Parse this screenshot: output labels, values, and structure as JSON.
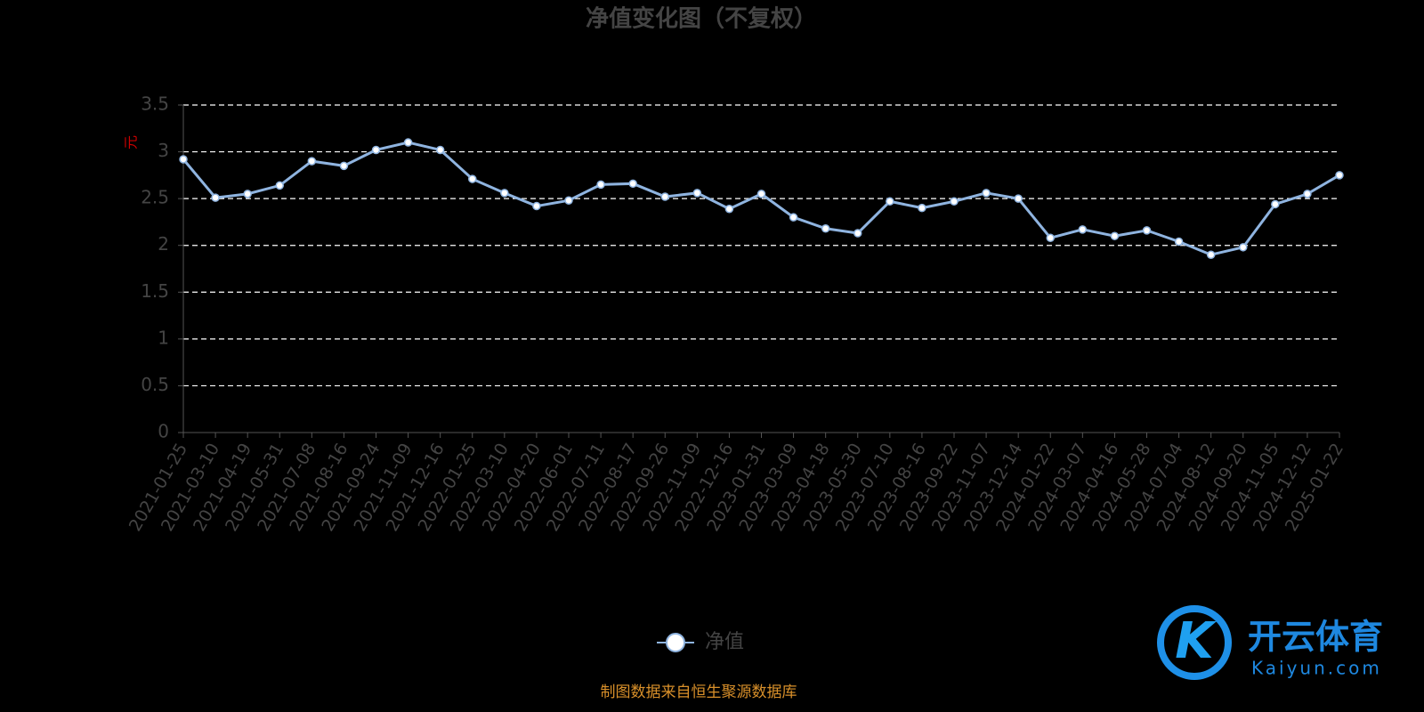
{
  "chart_data": {
    "type": "line",
    "title": "净值变化图（不复权）",
    "y_label": "元",
    "categories": [
      "2021-01-25",
      "2021-03-10",
      "2021-04-19",
      "2021-05-31",
      "2021-07-08",
      "2021-08-16",
      "2021-09-24",
      "2021-11-09",
      "2021-12-16",
      "2022-01-25",
      "2022-03-10",
      "2022-04-20",
      "2022-06-01",
      "2022-07-11",
      "2022-08-17",
      "2022-09-26",
      "2022-11-09",
      "2022-12-16",
      "2023-01-31",
      "2023-03-09",
      "2023-04-18",
      "2023-05-30",
      "2023-07-10",
      "2023-08-16",
      "2023-09-22",
      "2023-11-07",
      "2023-12-14",
      "2024-01-22",
      "2024-03-07",
      "2024-04-16",
      "2024-05-28",
      "2024-07-04",
      "2024-08-12",
      "2024-09-20",
      "2024-11-05",
      "2024-12-12",
      "2025-01-22"
    ],
    "series": [
      {
        "name": "净值",
        "color": "#8fb4e0",
        "values": [
          2.92,
          2.51,
          2.55,
          2.64,
          2.9,
          2.85,
          3.02,
          3.1,
          3.02,
          2.71,
          2.56,
          2.42,
          2.48,
          2.65,
          2.66,
          2.52,
          2.56,
          2.39,
          2.55,
          2.3,
          2.18,
          2.13,
          2.47,
          2.4,
          2.47,
          2.56,
          2.5,
          2.08,
          2.17,
          2.1,
          2.16,
          2.04,
          1.9,
          1.98,
          2.44,
          2.55,
          2.75
        ]
      }
    ],
    "ylim": [
      0,
      3.5
    ],
    "yticks": [
      0,
      0.5,
      1,
      1.5,
      2,
      2.5,
      3,
      3.5
    ],
    "grid": true,
    "source": "制图数据来自恒生聚源数据库",
    "watermark": [
      "开云体育",
      "Kaiyun.com"
    ]
  }
}
